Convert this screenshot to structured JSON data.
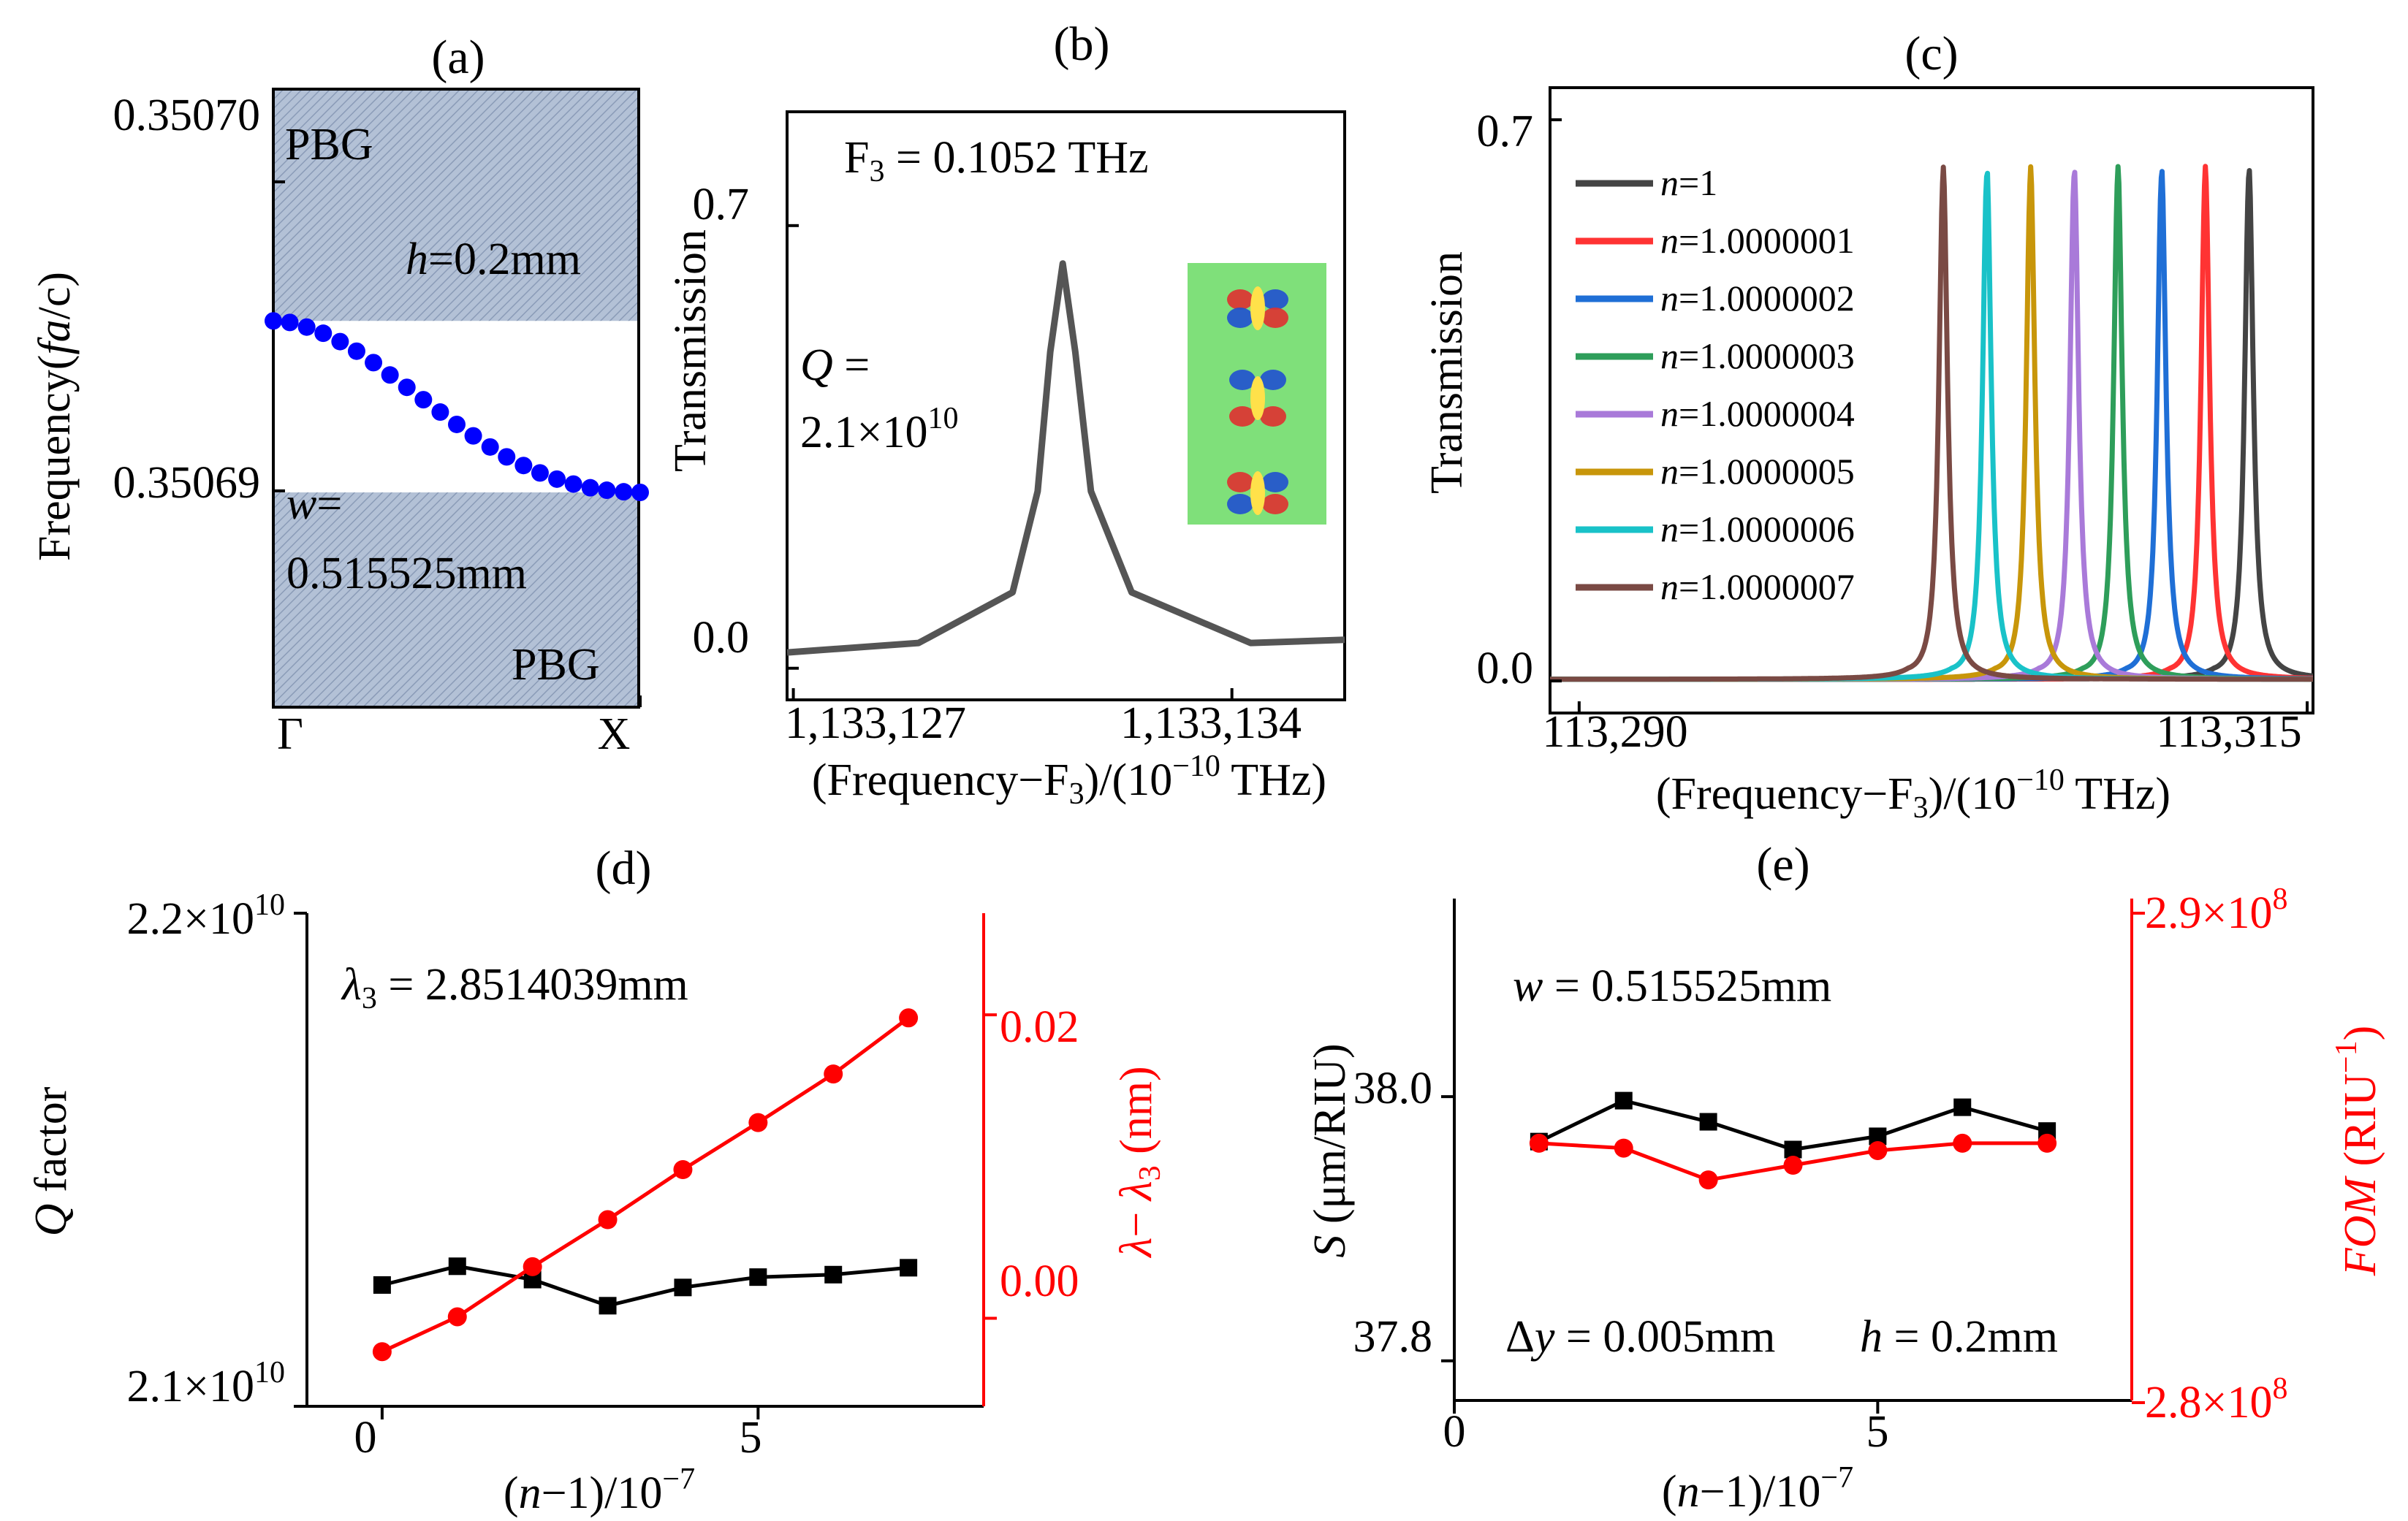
{
  "chart_data": [
    {
      "panel": "(a)",
      "type": "scatter",
      "title": "(a)",
      "ylabel": "Frequency(fa/c)",
      "x_ticks": [
        "Γ",
        "X"
      ],
      "y_ticks": [
        "0.35070",
        "0.35069"
      ],
      "ylim": [
        0.350683,
        0.350703
      ],
      "marker_color": "#0000ff",
      "x": [
        0.0,
        0.045,
        0.091,
        0.136,
        0.182,
        0.227,
        0.273,
        0.318,
        0.364,
        0.409,
        0.455,
        0.5,
        0.545,
        0.591,
        0.636,
        0.682,
        0.727,
        0.773,
        0.818,
        0.864,
        0.909,
        0.955,
        1.0
      ],
      "y": [
        0.3506955,
        0.35069545,
        0.3506953,
        0.3506951,
        0.35069483,
        0.35069452,
        0.35069415,
        0.35069375,
        0.35069335,
        0.35069295,
        0.35069255,
        0.35069215,
        0.35069178,
        0.35069142,
        0.3506911,
        0.35069082,
        0.35069058,
        0.35069038,
        0.35069022,
        0.3506901,
        0.35069002,
        0.35068997,
        0.35068995
      ],
      "band_regions": [
        {
          "label": "PBG",
          "from": 0.3506955,
          "to": 0.350703
        },
        {
          "label": "PBG",
          "from": 0.350683,
          "to": 0.35068995
        }
      ],
      "annotations": {
        "pbg_top": "PBG",
        "pbg_bottom": "PBG",
        "h": "h=0.2mm",
        "w_line1": "w=",
        "w_line2": "0.515525mm"
      }
    },
    {
      "panel": "(b)",
      "type": "line",
      "title": "(b)",
      "xlabel": "(Frequency−F3)/(10−10 THz)",
      "ylabel": "Transmission",
      "x_ticks": [
        "1,133,127",
        "1,133,134"
      ],
      "y_ticks": [
        "0.0",
        "0.7"
      ],
      "xlim": [
        1133126.9,
        1133135.8
      ],
      "ylim": [
        -0.05,
        0.88
      ],
      "series": [
        {
          "name": "transmission",
          "color": "#555555",
          "x": [
            1133126.9,
            1133129.0,
            1133130.5,
            1133130.9,
            1133131.1,
            1133131.3,
            1133131.5,
            1133131.75,
            1133132.4,
            1133134.3,
            1133135.8
          ],
          "y": [
            0.025,
            0.04,
            0.12,
            0.28,
            0.5,
            0.64,
            0.5,
            0.28,
            0.12,
            0.04,
            0.045
          ]
        }
      ],
      "annotations": {
        "f3": "F3 = 0.1052 THz",
        "q_line1": "Q =",
        "q_line2": "2.1×1010"
      }
    },
    {
      "panel": "(c)",
      "type": "line",
      "title": "(c)",
      "xlabel": "(Frequency−F3)/(10−10 THz)",
      "ylabel": "Transmission",
      "x_ticks": [
        "113,290",
        "113,315"
      ],
      "y_ticks": [
        "0.0",
        "0.7"
      ],
      "xlim": [
        113289,
        113315.2
      ],
      "ylim": [
        -0.04,
        0.74
      ],
      "peak_height": 0.64,
      "series": [
        {
          "name": "n=1",
          "color": "#444444",
          "peak": 113313.0
        },
        {
          "name": "n=1.0000001",
          "color": "#ff3333",
          "peak": 113311.5
        },
        {
          "name": "n=1.0000002",
          "color": "#1f6fd6",
          "peak": 113310.0
        },
        {
          "name": "n=1.0000003",
          "color": "#2e9e5a",
          "peak": 113308.5
        },
        {
          "name": "n=1.0000004",
          "color": "#a97ad9",
          "peak": 113307.0
        },
        {
          "name": "n=1.0000005",
          "color": "#c8960a",
          "peak": 113305.5
        },
        {
          "name": "n=1.0000006",
          "color": "#19c2c8",
          "peak": 113304.0
        },
        {
          "name": "n=1.0000007",
          "color": "#7a4a44",
          "peak": 113302.5
        }
      ]
    },
    {
      "panel": "(d)",
      "type": "line",
      "title": "(d)",
      "xlabel": "(n−1)/10−7",
      "ylabel_left": "Q factor",
      "ylabel_right": "λ− λ3 (nm)",
      "x_ticks": [
        "0",
        "5"
      ],
      "y_ticks_left": [
        "2.1×1010",
        "2.2×1010"
      ],
      "y_ticks_right": [
        "0.00",
        "0.02"
      ],
      "xlim": [
        -1,
        8
      ],
      "ylim_left": [
        21000000000.0,
        22000000000.0
      ],
      "ylim_right": [
        -0.0058,
        0.0267
      ],
      "series": [
        {
          "name": "Q factor",
          "axis": "left",
          "color": "#000000",
          "marker": "square",
          "x": [
            0,
            1,
            2,
            3,
            4,
            5,
            6,
            7
          ],
          "y": [
            21246000000.0,
            21284000000.0,
            21257000000.0,
            21204000000.0,
            21241000000.0,
            21262000000.0,
            21267000000.0,
            21281000000.0
          ]
        },
        {
          "name": "λ− λ3",
          "axis": "right",
          "color": "#ff0000",
          "marker": "circle",
          "x": [
            0,
            1,
            2,
            3,
            4,
            5,
            6,
            7
          ],
          "y": [
            -0.0022,
            0.0001,
            0.0034,
            0.0065,
            0.0098,
            0.0129,
            0.0161,
            0.0198
          ]
        }
      ],
      "annotations": {
        "lambda3": "λ3 = 2.8514039mm"
      }
    },
    {
      "panel": "(e)",
      "type": "line",
      "title": "(e)",
      "xlabel": "(n−1)/10−7",
      "ylabel_left": "S (μm/RIU)",
      "ylabel_right": "FOM (RIU−1)",
      "x_ticks": [
        "0",
        "5"
      ],
      "y_ticks_left": [
        "37.8",
        "38.0"
      ],
      "y_ticks_right": [
        "2.8×108",
        "2.9×108"
      ],
      "xlim": [
        0,
        8
      ],
      "ylim_left": [
        37.77,
        38.15
      ],
      "ylim_right": [
        280000000.0,
        290000000.0
      ],
      "series": [
        {
          "name": "S",
          "axis": "left",
          "color": "#000000",
          "marker": "square",
          "x": [
            1,
            2,
            3,
            4,
            5,
            6,
            7
          ],
          "y": [
            37.966,
            37.997,
            37.981,
            37.96,
            37.97,
            37.992,
            37.974
          ]
        },
        {
          "name": "FOM",
          "axis": "right",
          "color": "#ff0000",
          "marker": "circle",
          "x": [
            1,
            2,
            3,
            4,
            5,
            6,
            7
          ],
          "y": [
            285300000.0,
            285200000.0,
            284550000.0,
            284850000.0,
            285150000.0,
            285300000.0,
            285300000.0
          ]
        }
      ],
      "annotations": {
        "w": "w = 0.515525mm",
        "dy": "Δy = 0.005mm",
        "h": "h = 0.2mm"
      }
    }
  ]
}
